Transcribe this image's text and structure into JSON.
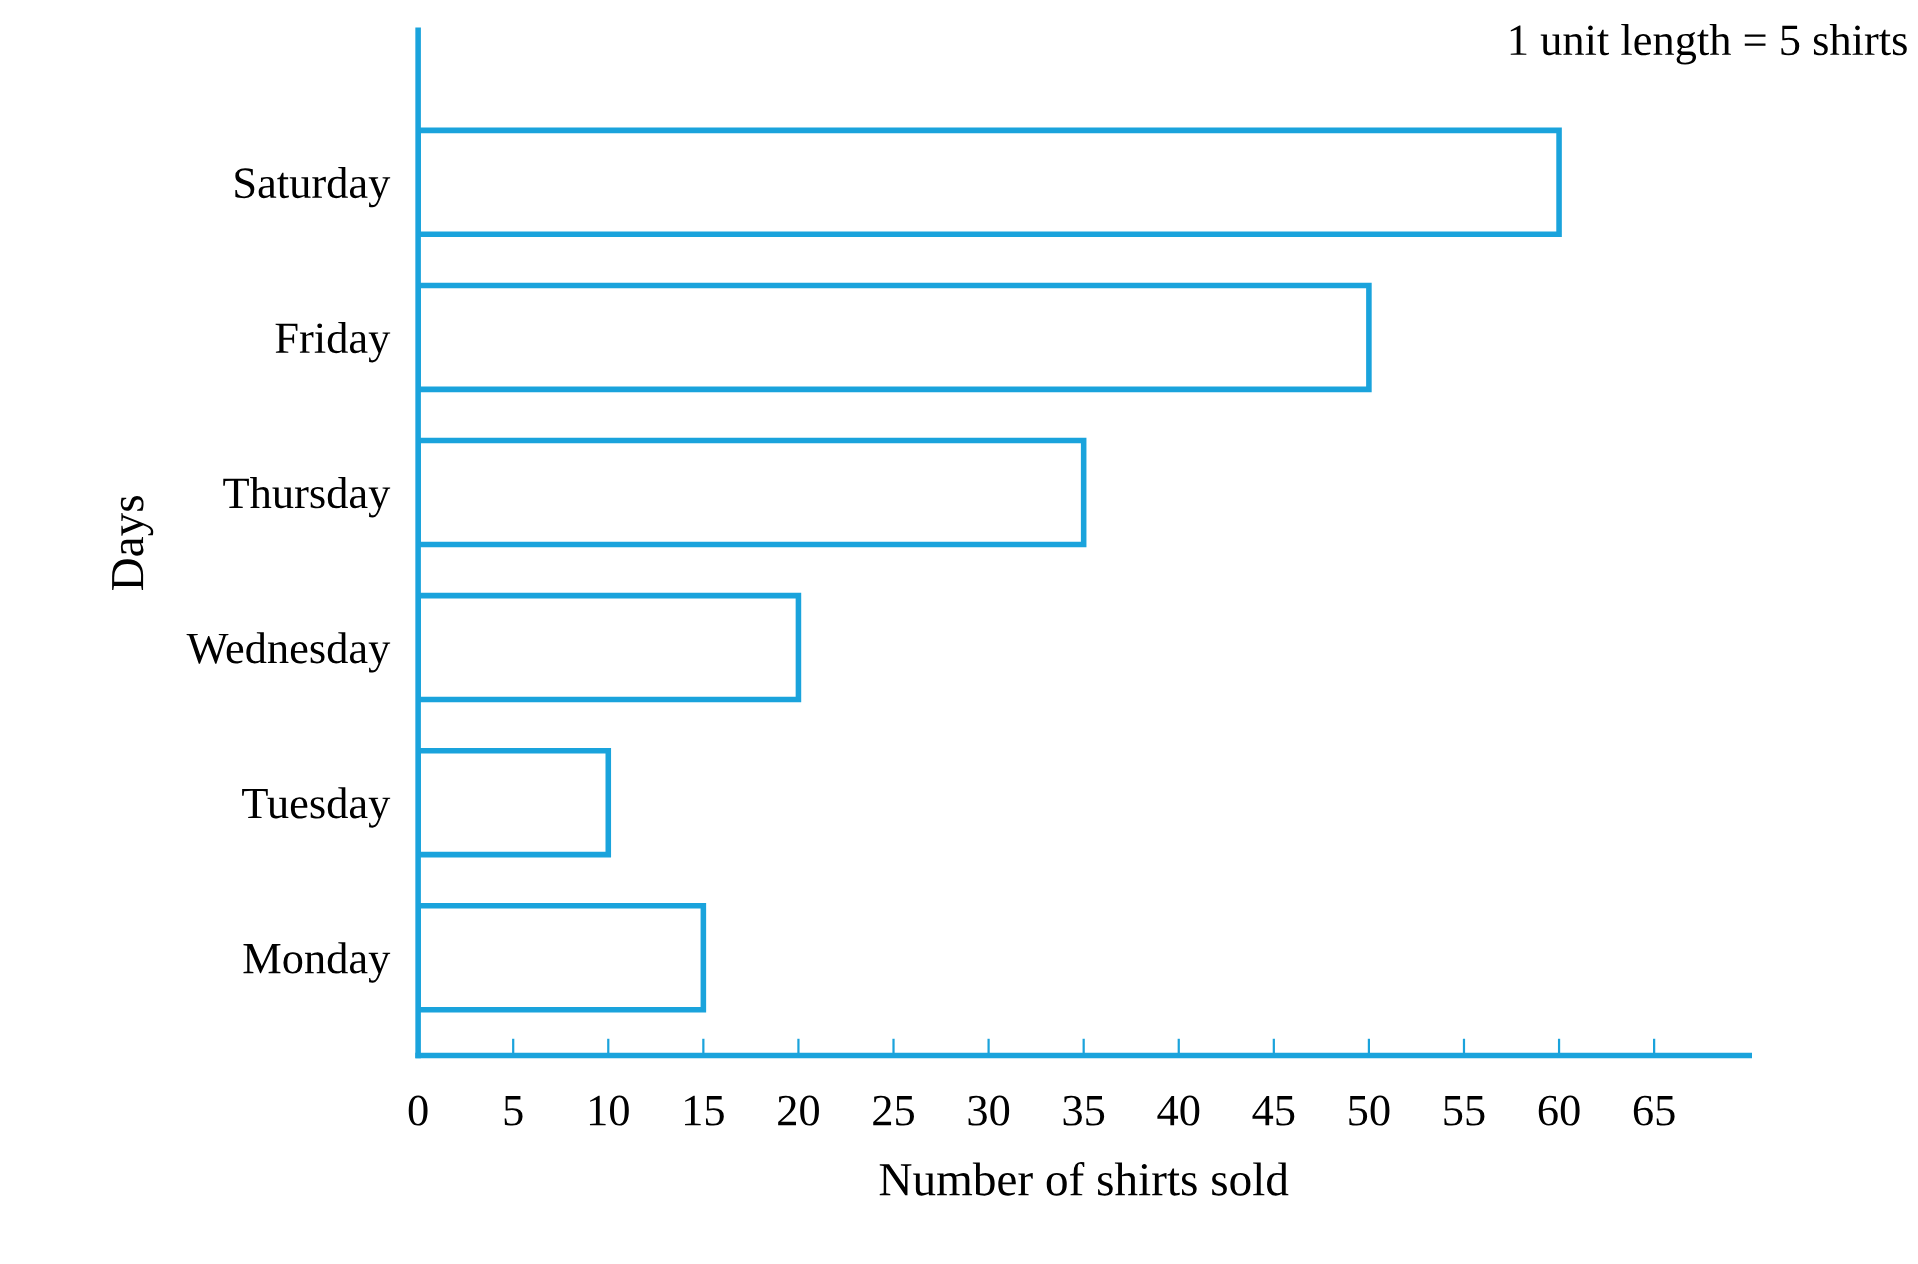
{
  "chart_data": {
    "type": "bar",
    "orientation": "horizontal",
    "categories": [
      "Saturday",
      "Friday",
      "Thursday",
      "Wednesday",
      "Tuesday",
      "Monday"
    ],
    "values": [
      60,
      50,
      35,
      20,
      10,
      15
    ],
    "color": "#1aa3dc",
    "xlabel": "Number of shirts sold",
    "ylabel": "Days",
    "xlim": [
      0,
      70
    ],
    "xticks": [
      0,
      5,
      10,
      15,
      20,
      25,
      30,
      35,
      40,
      45,
      50,
      55,
      60,
      65
    ],
    "annotations": [
      "1 unit length = 5 shirts"
    ],
    "grid": false
  }
}
